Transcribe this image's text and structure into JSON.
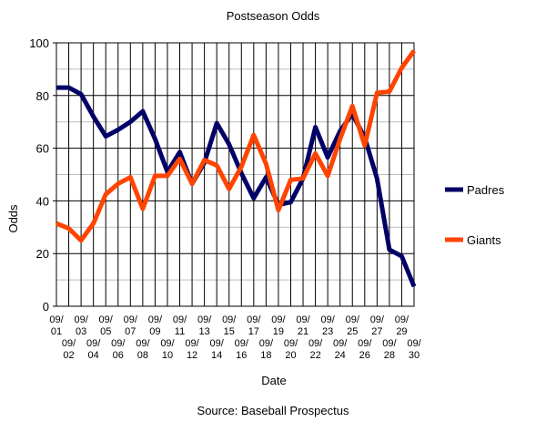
{
  "chart_data": {
    "type": "line",
    "title": "Postseason Odds",
    "xlabel": "Date",
    "ylabel": "Odds",
    "source": "Source: Baseball Prospectus",
    "ylim": [
      0,
      100
    ],
    "yticks": [
      0,
      20,
      40,
      60,
      80,
      100
    ],
    "grid": true,
    "legend_position": "right",
    "x": [
      "09/01",
      "09/02",
      "09/03",
      "09/04",
      "09/05",
      "09/06",
      "09/07",
      "09/08",
      "09/09",
      "09/10",
      "09/11",
      "09/12",
      "09/13",
      "09/14",
      "09/15",
      "09/16",
      "09/17",
      "09/18",
      "09/19",
      "09/20",
      "09/21",
      "09/22",
      "09/23",
      "09/24",
      "09/25",
      "09/26",
      "09/27",
      "09/28",
      "09/29",
      "09/30"
    ],
    "series": [
      {
        "name": "Padres",
        "color": "#000066",
        "values": [
          83,
          83,
          80.5,
          72,
          64.5,
          67,
          70,
          74,
          63.5,
          51,
          58.5,
          46.5,
          54.5,
          69.5,
          61.5,
          50.5,
          41,
          49,
          38.5,
          39.5,
          48.5,
          68,
          56.5,
          66.5,
          73,
          64,
          48.5,
          21.5,
          19,
          7.5
        ]
      },
      {
        "name": "Giants",
        "color": "#ff4400",
        "values": [
          31.5,
          29.5,
          25,
          31.5,
          42.5,
          46.5,
          49,
          37,
          49.5,
          49.5,
          56,
          46.5,
          55.5,
          53.5,
          44.5,
          53,
          65,
          54,
          36.5,
          48,
          48.5,
          58,
          49.5,
          63.5,
          76,
          61,
          81,
          81.5,
          90.5,
          97
        ]
      }
    ]
  }
}
